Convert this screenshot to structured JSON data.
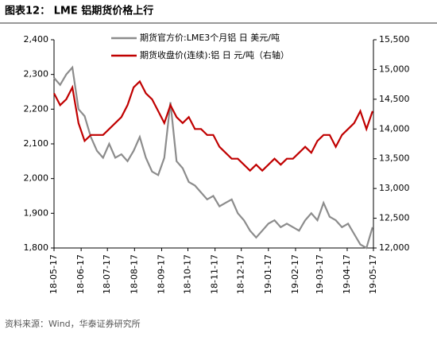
{
  "chart_data": {
    "type": "line",
    "title": "图表12：  LME 铝期货价格上行",
    "source": "资料来源：Wind，华泰证券研究所",
    "x": [
      "18-05-17",
      "18-05-24",
      "18-05-31",
      "18-06-07",
      "18-06-14",
      "18-06-21",
      "18-06-28",
      "18-07-05",
      "18-07-12",
      "18-07-19",
      "18-07-26",
      "18-08-02",
      "18-08-09",
      "18-08-16",
      "18-08-23",
      "18-08-30",
      "18-09-06",
      "18-09-13",
      "18-09-20",
      "18-09-27",
      "18-10-04",
      "18-10-11",
      "18-10-18",
      "18-10-25",
      "18-11-01",
      "18-11-08",
      "18-11-15",
      "18-11-22",
      "18-11-29",
      "18-12-06",
      "18-12-13",
      "18-12-20",
      "18-12-27",
      "19-01-03",
      "19-01-10",
      "19-01-17",
      "19-01-24",
      "19-01-31",
      "19-02-07",
      "19-02-14",
      "19-02-21",
      "19-02-28",
      "19-03-07",
      "19-03-14",
      "19-03-21",
      "19-03-28",
      "19-04-04",
      "19-04-11",
      "19-04-18",
      "19-04-25",
      "19-05-02",
      "19-05-09",
      "19-05-16"
    ],
    "xlim": [
      "18-05-17",
      "19-05-17"
    ],
    "xticks": [
      "18-05-17",
      "18-06-17",
      "18-07-17",
      "18-08-17",
      "18-09-17",
      "18-10-17",
      "18-11-17",
      "18-12-17",
      "19-01-17",
      "19-02-17",
      "19-03-17",
      "19-04-17",
      "19-05-17"
    ],
    "series": [
      {
        "name": "期货官方价:LME3个月铝 日 美元/吨",
        "color": "#8c8c8c",
        "axis": "y",
        "values": [
          2290,
          2270,
          2300,
          2320,
          2200,
          2180,
          2120,
          2080,
          2060,
          2100,
          2060,
          2070,
          2050,
          2080,
          2120,
          2060,
          2020,
          2010,
          2060,
          2220,
          2050,
          2030,
          1990,
          1980,
          1960,
          1940,
          1950,
          1920,
          1930,
          1940,
          1900,
          1880,
          1850,
          1830,
          1850,
          1870,
          1880,
          1860,
          1870,
          1860,
          1850,
          1880,
          1900,
          1880,
          1930,
          1890,
          1880,
          1860,
          1870,
          1840,
          1810,
          1800,
          1860
        ]
      },
      {
        "name": "期货收盘价(连续):铝 日 元/吨（右轴）",
        "color": "#c00000",
        "axis": "y2",
        "values": [
          14600,
          14400,
          14500,
          14700,
          14100,
          13800,
          13900,
          13900,
          13900,
          14000,
          14100,
          14200,
          14400,
          14700,
          14800,
          14600,
          14500,
          14300,
          14100,
          14400,
          14200,
          14100,
          14200,
          14000,
          14000,
          13900,
          13900,
          13700,
          13600,
          13500,
          13500,
          13400,
          13300,
          13400,
          13300,
          13400,
          13500,
          13400,
          13500,
          13500,
          13600,
          13700,
          13600,
          13800,
          13900,
          13900,
          13700,
          13900,
          14000,
          14100,
          14300,
          14000,
          14300
        ]
      }
    ],
    "ylim": [
      1800,
      2400
    ],
    "yticks": [
      {
        "value": 1800,
        "label": "1,800"
      },
      {
        "value": 1900,
        "label": "1,900"
      },
      {
        "value": 2000,
        "label": "2,000"
      },
      {
        "value": 2100,
        "label": "2,100"
      },
      {
        "value": 2200,
        "label": "2,200"
      },
      {
        "value": 2300,
        "label": "2,300"
      },
      {
        "value": 2400,
        "label": "2,400"
      }
    ],
    "y2lim": [
      12000,
      15500
    ],
    "y2ticks": [
      {
        "value": 12000,
        "label": "12,000"
      },
      {
        "value": 12500,
        "label": "12,500"
      },
      {
        "value": 13000,
        "label": "13,000"
      },
      {
        "value": 13500,
        "label": "13,500"
      },
      {
        "value": 14000,
        "label": "14,000"
      },
      {
        "value": 14500,
        "label": "14,500"
      },
      {
        "value": 15000,
        "label": "15,000"
      },
      {
        "value": 15500,
        "label": "15,500"
      }
    ],
    "grid": false
  }
}
